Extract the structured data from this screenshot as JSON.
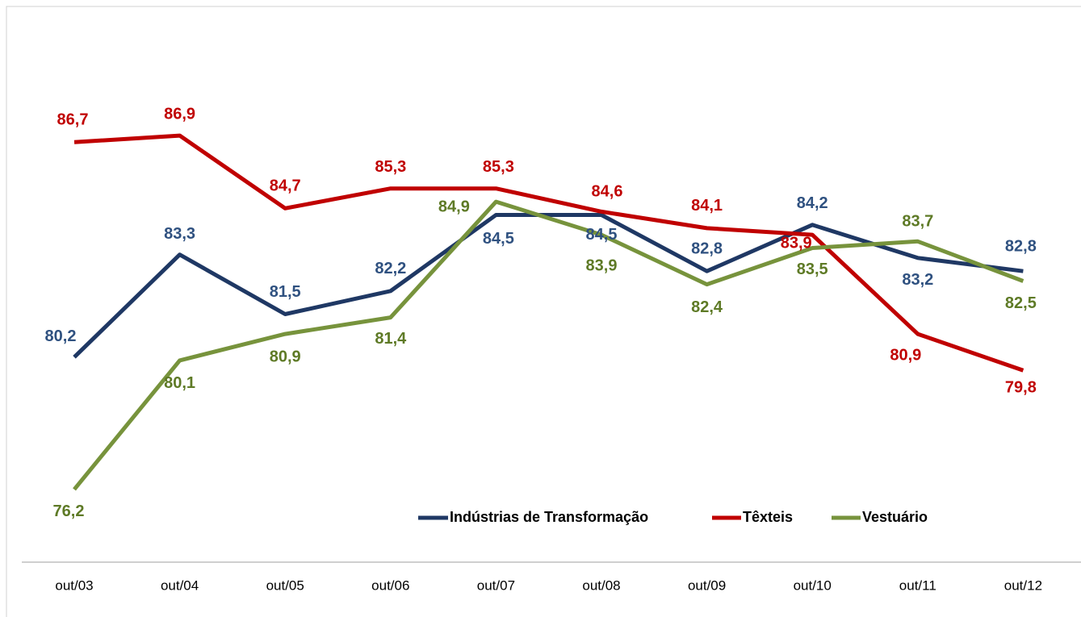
{
  "chart_data": {
    "type": "line",
    "categories": [
      "out/03",
      "out/04",
      "out/05",
      "out/06",
      "out/07",
      "out/08",
      "out/09",
      "out/10",
      "out/11",
      "out/12"
    ],
    "series": [
      {
        "name": "Indústrias de Transformação",
        "color": "#1f3864",
        "label_color": "#2f5180",
        "values": [
          80.2,
          83.3,
          81.5,
          82.2,
          84.5,
          84.5,
          82.8,
          84.2,
          83.2,
          82.8
        ],
        "value_labels": [
          "80,2",
          "83,3",
          "81,5",
          "82,2",
          "84,5",
          "84,5",
          "82,8",
          "84,2",
          "83,2",
          "82,8"
        ]
      },
      {
        "name": "Têxteis",
        "color": "#c00000",
        "label_color": "#c00000",
        "values": [
          86.7,
          86.9,
          84.7,
          85.3,
          85.3,
          84.6,
          84.1,
          83.9,
          80.9,
          79.8
        ],
        "value_labels": [
          "86,7",
          "86,9",
          "84,7",
          "85,3",
          "85,3",
          "84,6",
          "84,1",
          "83,9",
          "80,9",
          "79,8"
        ]
      },
      {
        "name": "Vestuário",
        "color": "#77933c",
        "label_color": "#5e7a26",
        "values": [
          76.2,
          80.1,
          80.9,
          81.4,
          84.9,
          83.9,
          82.4,
          83.5,
          83.7,
          82.5
        ],
        "value_labels": [
          "76,2",
          "80,1",
          "80,9",
          "81,4",
          "84,9",
          "83,9",
          "82,4",
          "83,5",
          "83,7",
          "82,5"
        ]
      }
    ],
    "ylim": [
      74,
      90
    ]
  }
}
